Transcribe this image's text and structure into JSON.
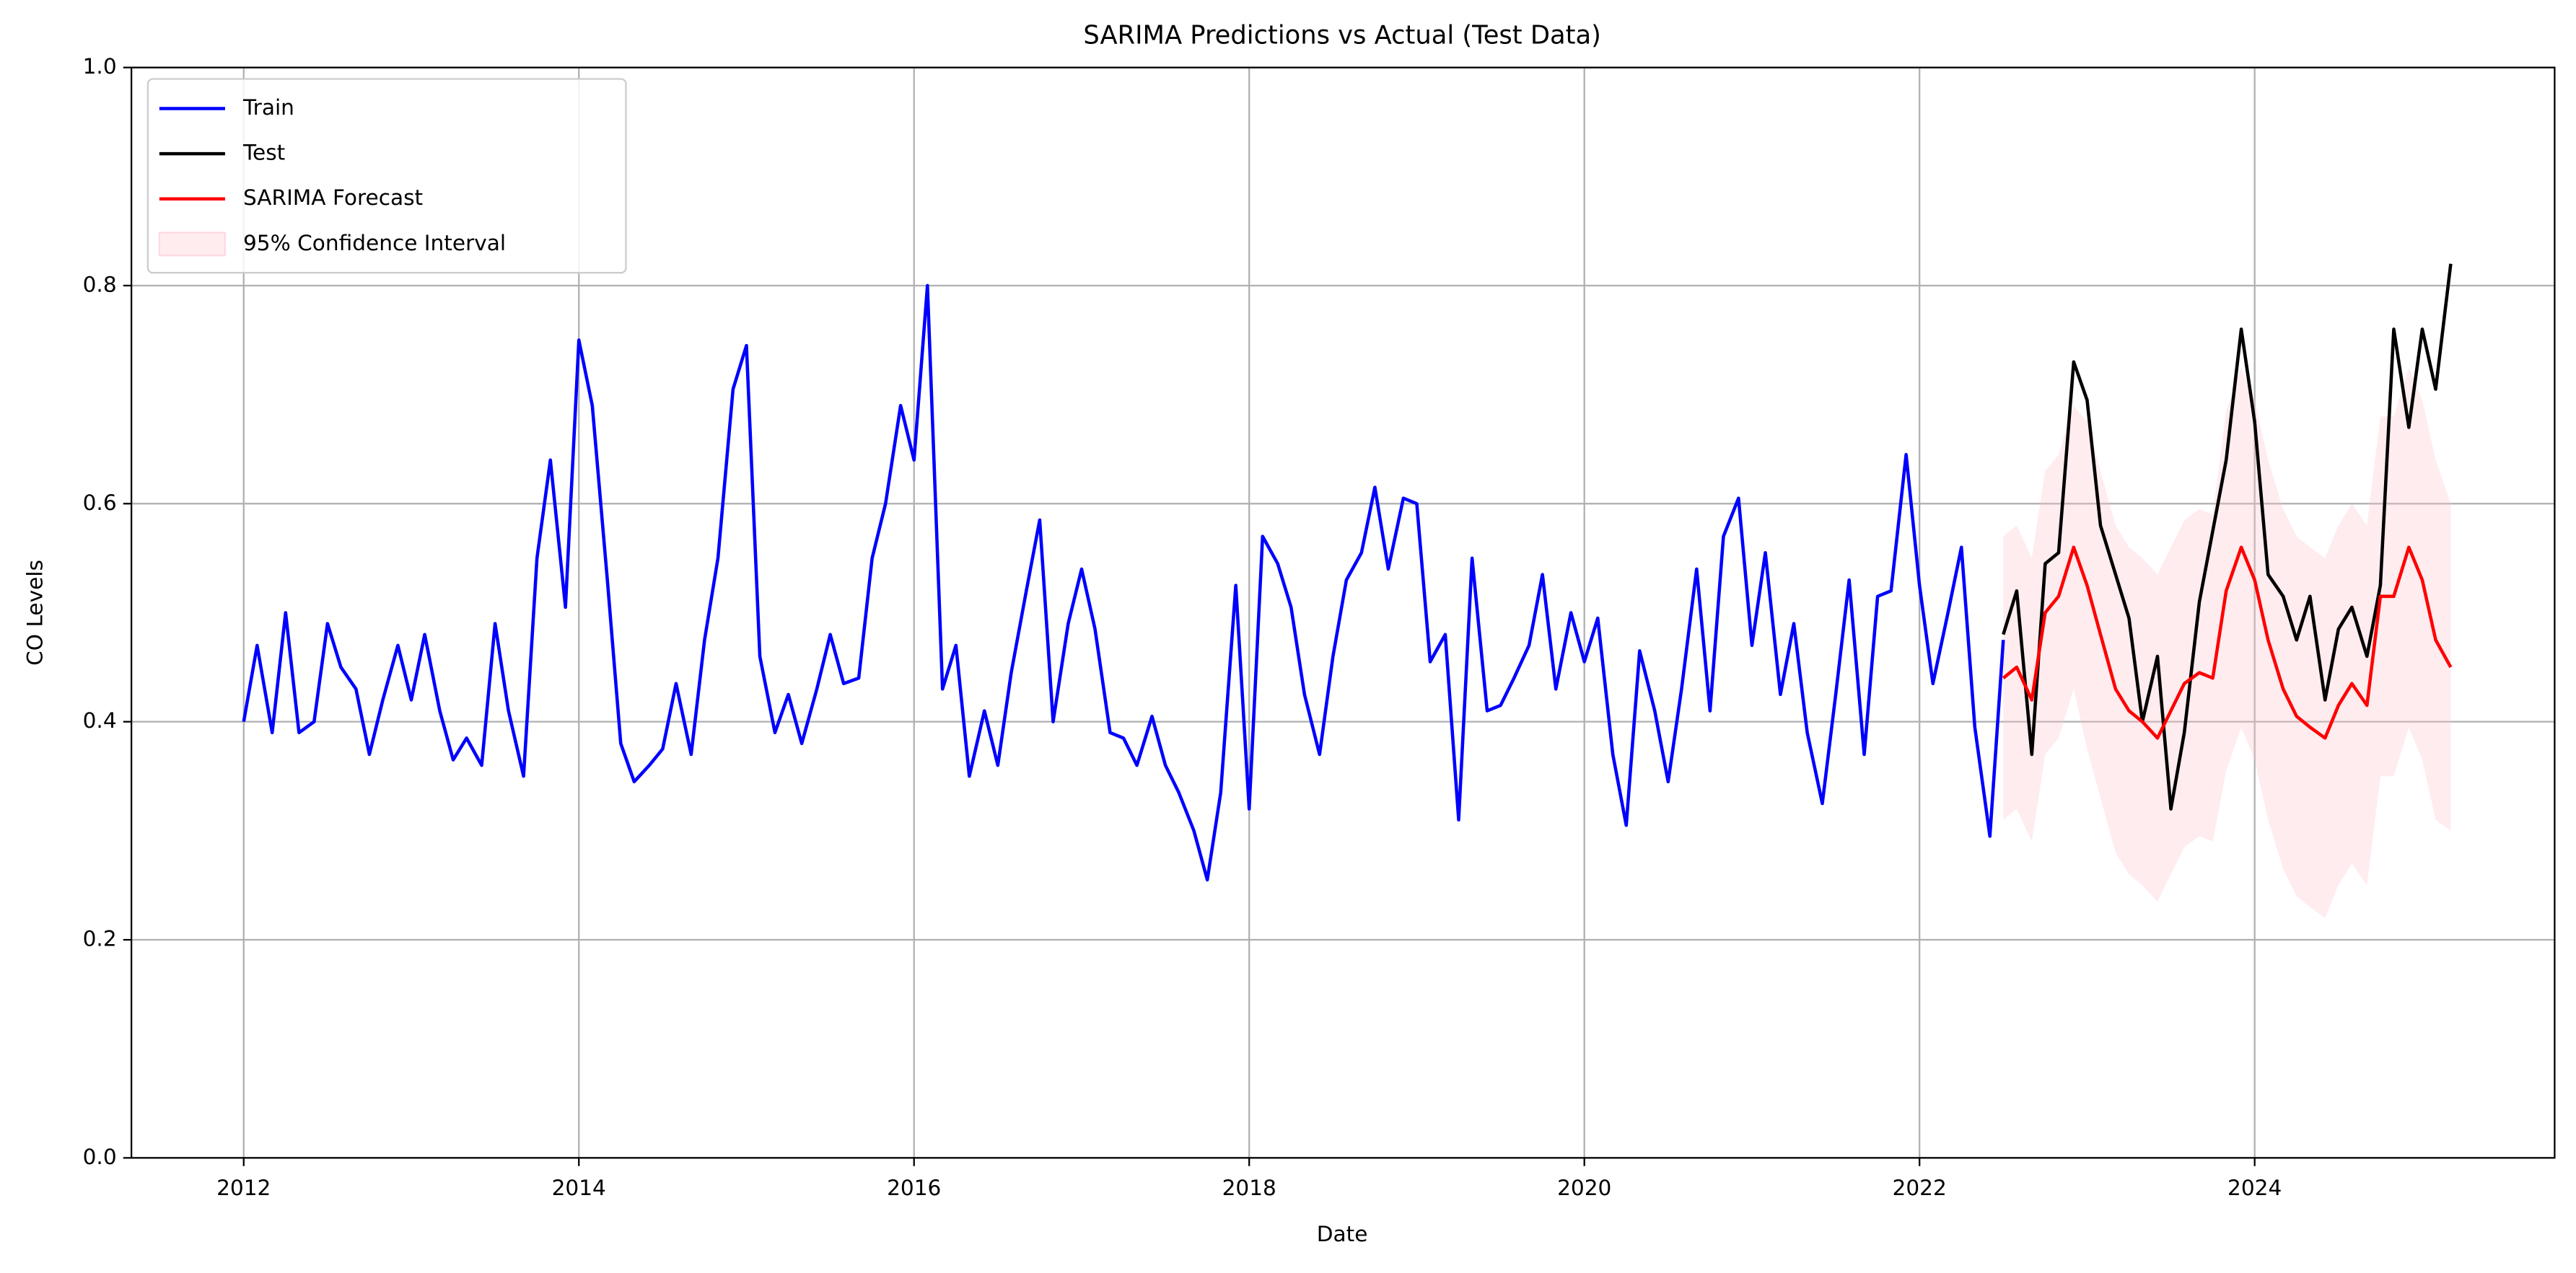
{
  "chart_data": {
    "type": "line",
    "title": "SARIMA Predictions vs Actual (Test Data)",
    "xlabel": "Date",
    "ylabel": "CO Levels",
    "xlim": [
      2011.33,
      2025.79
    ],
    "ylim": [
      0,
      1
    ],
    "xticks": [
      2012,
      2014,
      2016,
      2018,
      2020,
      2022,
      2024
    ],
    "yticks": [
      {
        "value": 0,
        "label": "0.0"
      },
      0.2,
      0.4,
      0.6,
      0.8,
      {
        "value": 1,
        "label": "1.0"
      }
    ],
    "grid": true,
    "legend": "upper left",
    "series": [
      {
        "name": "Train",
        "color": "#0000ff",
        "x": [
          2012,
          2012.08,
          2012.17,
          2012.25,
          2012.33,
          2012.42,
          2012.5,
          2012.58,
          2012.67,
          2012.75,
          2012.83,
          2012.92,
          2013,
          2013.08,
          2013.17,
          2013.25,
          2013.33,
          2013.42,
          2013.5,
          2013.58,
          2013.67,
          2013.75,
          2013.83,
          2013.92,
          2014,
          2014.08,
          2014.17,
          2014.25,
          2014.33,
          2014.42,
          2014.5,
          2014.58,
          2014.67,
          2014.75,
          2014.83,
          2014.92,
          2015,
          2015.08,
          2015.17,
          2015.25,
          2015.33,
          2015.42,
          2015.5,
          2015.58,
          2015.67,
          2015.75,
          2015.83,
          2015.92,
          2016,
          2016.08,
          2016.17,
          2016.25,
          2016.33,
          2016.42,
          2016.5,
          2016.58,
          2016.67,
          2016.75,
          2016.83,
          2016.92,
          2017,
          2017.08,
          2017.17,
          2017.25,
          2017.33,
          2017.42,
          2017.5,
          2017.58,
          2017.67,
          2017.75,
          2017.83,
          2017.92,
          2018,
          2018.08,
          2018.17,
          2018.25,
          2018.33,
          2018.42,
          2018.5,
          2018.58,
          2018.67,
          2018.75,
          2018.83,
          2018.92,
          2019,
          2019.08,
          2019.17,
          2019.25,
          2019.33,
          2019.42,
          2019.5,
          2019.58,
          2019.67,
          2019.75,
          2019.83,
          2019.92,
          2020,
          2020.08,
          2020.17,
          2020.25,
          2020.33,
          2020.42,
          2020.5,
          2020.58,
          2020.67,
          2020.75,
          2020.83,
          2020.92,
          2021,
          2021.08,
          2021.17,
          2021.25,
          2021.33,
          2021.42,
          2021.5,
          2021.58,
          2021.67,
          2021.75,
          2021.83,
          2021.92,
          2022,
          2022.08,
          2022.17,
          2022.25,
          2022.33,
          2022.42,
          2022.5
        ],
        "values": [
          0.4,
          0.47,
          0.39,
          0.5,
          0.39,
          0.4,
          0.49,
          0.45,
          0.43,
          0.37,
          0.42,
          0.47,
          0.42,
          0.48,
          0.41,
          0.365,
          0.385,
          0.36,
          0.49,
          0.41,
          0.35,
          0.55,
          0.64,
          0.505,
          0.75,
          0.69,
          0.53,
          0.38,
          0.345,
          0.36,
          0.375,
          0.435,
          0.37,
          0.475,
          0.55,
          0.705,
          0.745,
          0.46,
          0.39,
          0.425,
          0.38,
          0.43,
          0.48,
          0.435,
          0.44,
          0.55,
          0.6,
          0.69,
          0.64,
          0.8,
          0.43,
          0.47,
          0.35,
          0.41,
          0.36,
          0.445,
          0.52,
          0.585,
          0.4,
          0.49,
          0.54,
          0.485,
          0.39,
          0.385,
          0.36,
          0.405,
          0.36,
          0.335,
          0.3,
          0.255,
          0.335,
          0.525,
          0.32,
          0.57,
          0.545,
          0.505,
          0.425,
          0.37,
          0.46,
          0.53,
          0.555,
          0.615,
          0.54,
          0.605,
          0.6,
          0.455,
          0.48,
          0.31,
          0.55,
          0.41,
          0.415,
          0.44,
          0.47,
          0.535,
          0.43,
          0.5,
          0.455,
          0.495,
          0.37,
          0.305,
          0.465,
          0.41,
          0.345,
          0.43,
          0.54,
          0.41,
          0.57,
          0.605,
          0.47,
          0.555,
          0.425,
          0.49,
          0.39,
          0.325,
          0.425,
          0.53,
          0.37,
          0.515,
          0.52,
          0.645,
          0.525,
          0.435,
          0.5,
          0.56,
          0.395,
          0.295,
          0.475
        ]
      },
      {
        "name": "Test",
        "color": "#000000",
        "x": [
          2022.5,
          2022.58,
          2022.67,
          2022.75,
          2022.83,
          2022.92,
          2023,
          2023.08,
          2023.17,
          2023.25,
          2023.33,
          2023.42,
          2023.5,
          2023.58,
          2023.67,
          2023.75,
          2023.83,
          2023.92,
          2024,
          2024.08,
          2024.17,
          2024.25,
          2024.33,
          2024.42,
          2024.5,
          2024.58,
          2024.67,
          2024.75,
          2024.83,
          2024.92,
          2025,
          2025.08,
          2025.17
        ],
        "values": [
          0.48,
          0.52,
          0.37,
          0.545,
          0.555,
          0.73,
          0.695,
          0.58,
          0.535,
          0.495,
          0.4,
          0.46,
          0.32,
          0.39,
          0.51,
          0.575,
          0.64,
          0.76,
          0.675,
          0.535,
          0.515,
          0.475,
          0.515,
          0.42,
          0.485,
          0.505,
          0.46,
          0.525,
          0.76,
          0.67,
          0.76,
          0.705,
          0.82
        ]
      },
      {
        "name": "SARIMA Forecast",
        "color": "#ff0000",
        "x": [
          2022.5,
          2022.58,
          2022.67,
          2022.75,
          2022.83,
          2022.92,
          2023,
          2023.08,
          2023.17,
          2023.25,
          2023.33,
          2023.42,
          2023.5,
          2023.58,
          2023.67,
          2023.75,
          2023.83,
          2023.92,
          2024,
          2024.08,
          2024.17,
          2024.25,
          2024.33,
          2024.42,
          2024.5,
          2024.58,
          2024.67,
          2024.75,
          2024.83,
          2024.92,
          2025,
          2025.08,
          2025.17
        ],
        "values": [
          0.44,
          0.45,
          0.42,
          0.5,
          0.515,
          0.56,
          0.525,
          0.48,
          0.43,
          0.41,
          0.4,
          0.385,
          0.41,
          0.435,
          0.445,
          0.44,
          0.52,
          0.56,
          0.53,
          0.475,
          0.43,
          0.405,
          0.395,
          0.385,
          0.415,
          0.435,
          0.415,
          0.515,
          0.515,
          0.56,
          0.53,
          0.475,
          0.45
        ]
      }
    ],
    "confidence_interval": {
      "name": "95% Confidence Interval",
      "color": "#ffc0cb",
      "x": [
        2022.5,
        2022.58,
        2022.67,
        2022.75,
        2022.83,
        2022.92,
        2023,
        2023.08,
        2023.17,
        2023.25,
        2023.33,
        2023.42,
        2023.5,
        2023.58,
        2023.67,
        2023.75,
        2023.83,
        2023.92,
        2024,
        2024.08,
        2024.17,
        2024.25,
        2024.33,
        2024.42,
        2024.5,
        2024.58,
        2024.67,
        2024.75,
        2024.83,
        2024.92,
        2025,
        2025.08,
        2025.17
      ],
      "lower": [
        0.31,
        0.32,
        0.29,
        0.37,
        0.385,
        0.43,
        0.375,
        0.33,
        0.28,
        0.26,
        0.25,
        0.235,
        0.26,
        0.285,
        0.295,
        0.29,
        0.355,
        0.395,
        0.365,
        0.31,
        0.265,
        0.24,
        0.23,
        0.22,
        0.25,
        0.27,
        0.25,
        0.35,
        0.35,
        0.395,
        0.365,
        0.31,
        0.3
      ],
      "upper": [
        0.57,
        0.58,
        0.55,
        0.63,
        0.645,
        0.69,
        0.675,
        0.63,
        0.58,
        0.56,
        0.55,
        0.535,
        0.56,
        0.585,
        0.595,
        0.59,
        0.685,
        0.725,
        0.695,
        0.64,
        0.595,
        0.57,
        0.56,
        0.55,
        0.58,
        0.6,
        0.58,
        0.68,
        0.68,
        0.725,
        0.695,
        0.64,
        0.6
      ]
    }
  }
}
